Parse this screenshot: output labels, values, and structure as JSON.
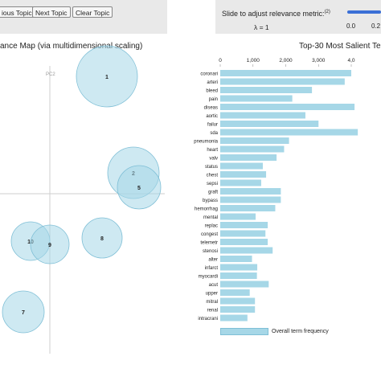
{
  "toolbar": {
    "prev_label": "ious Topic",
    "next_label": "Next Topic",
    "clear_label": "Clear Topic"
  },
  "slider": {
    "label": "Slide to adjust relevance metric:",
    "footnote": "(2)",
    "lambda_text": "λ = 1",
    "value": 1,
    "ticks": [
      "0.0",
      "0.2"
    ],
    "track_color": "#3b6fd6"
  },
  "intertopic_map": {
    "title": "ance Map (via multidimensional scaling)",
    "axis_label": "PC2",
    "bubble_fill": "#a6d7e7",
    "topics": [
      {
        "label": "1"
      },
      {
        "label": "2"
      },
      {
        "label": "5"
      },
      {
        "label": "8"
      },
      {
        "label": "10"
      },
      {
        "label": "9"
      },
      {
        "label": "7"
      }
    ]
  },
  "chart_data": {
    "type": "bar",
    "orientation": "horizontal",
    "title": "Top-30 Most Salient Te",
    "xlim": [
      0,
      4000
    ],
    "xticks": [
      "0",
      "1,000",
      "2,000",
      "3,000",
      "4,0"
    ],
    "categories": [
      "coronari",
      "arteri",
      "bleed",
      "pain",
      "diseas",
      "aortic",
      "failur",
      "sda",
      "pneumonia",
      "heart",
      "valv",
      "status",
      "chest",
      "sepsi",
      "graft",
      "bypass",
      "hemorrhag",
      "mental",
      "replac",
      "congest",
      "telemetr",
      "stenosi",
      "alter",
      "infarct",
      "myocardi",
      "acut",
      "upper",
      "mitral",
      "renal",
      "intracrani"
    ],
    "series": [
      {
        "name": "Overall term frequency",
        "color": "#a6d7e7",
        "values": [
          4000,
          3800,
          2800,
          2200,
          4100,
          2600,
          3000,
          4200,
          2100,
          1950,
          1720,
          1300,
          1400,
          1250,
          1850,
          1850,
          1680,
          1080,
          1450,
          1380,
          1450,
          1600,
          970,
          1130,
          1120,
          1480,
          900,
          1060,
          1060,
          830
        ]
      }
    ]
  }
}
